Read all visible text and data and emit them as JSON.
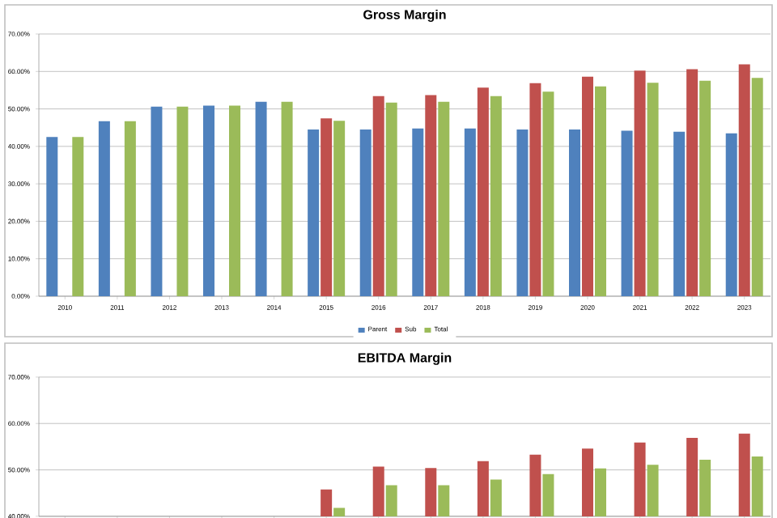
{
  "chart_data": [
    {
      "type": "bar",
      "title": "Gross Margin",
      "categories": [
        "2010",
        "2011",
        "2012",
        "2013",
        "2014",
        "2015",
        "2016",
        "2017",
        "2018",
        "2019",
        "2020",
        "2021",
        "2022",
        "2023"
      ],
      "series": [
        {
          "name": "Parent",
          "color": "#4f81bd",
          "values": [
            42.5,
            46.7,
            50.6,
            50.9,
            51.9,
            44.5,
            44.5,
            44.8,
            44.8,
            44.5,
            44.5,
            44.2,
            43.9,
            43.5
          ]
        },
        {
          "name": "Sub",
          "color": "#c0504d",
          "values": [
            null,
            null,
            null,
            null,
            null,
            47.5,
            53.4,
            53.7,
            55.7,
            56.9,
            58.6,
            60.2,
            60.6,
            61.9
          ]
        },
        {
          "name": "Total",
          "color": "#9bbb59",
          "values": [
            42.5,
            46.7,
            50.6,
            50.9,
            51.9,
            46.8,
            51.7,
            51.9,
            53.4,
            54.6,
            56.0,
            57.0,
            57.5,
            58.3
          ]
        }
      ],
      "ylim": [
        0,
        70
      ],
      "yticks": [
        {
          "value": 0,
          "label": "0.00%"
        },
        {
          "value": 10,
          "label": "10.00%"
        },
        {
          "value": 20,
          "label": "20.00%"
        },
        {
          "value": 30,
          "label": "30.00%"
        },
        {
          "value": 40,
          "label": "40.00%"
        },
        {
          "value": 50,
          "label": "50.00%"
        },
        {
          "value": 60,
          "label": "60.00%"
        },
        {
          "value": 70,
          "label": "70.00%"
        }
      ],
      "grid": "y",
      "legend": "bottom"
    },
    {
      "type": "bar",
      "title": "EBITDA Margin",
      "categories": [
        "2010",
        "2011",
        "2012",
        "2013",
        "2014",
        "2015",
        "2016",
        "2017",
        "2018",
        "2019",
        "2020",
        "2021",
        "2022",
        "2023"
      ],
      "series": [
        {
          "color": "#4f81bd",
          "values": [
            null,
            null,
            null,
            null,
            null,
            null,
            null,
            null,
            null,
            null,
            null,
            null,
            null,
            null
          ]
        },
        {
          "color": "#c0504d",
          "values": [
            null,
            null,
            null,
            null,
            null,
            45.8,
            50.7,
            50.4,
            51.9,
            53.3,
            54.6,
            55.9,
            56.9,
            57.8
          ]
        },
        {
          "color": "#9bbb59",
          "values": [
            null,
            null,
            null,
            null,
            null,
            41.8,
            46.7,
            46.7,
            47.9,
            49.1,
            50.3,
            51.1,
            52.2,
            52.9
          ]
        }
      ],
      "ylim": [
        40,
        70
      ],
      "yticks": [
        {
          "value": 40,
          "label": "40.00%"
        },
        {
          "value": 50,
          "label": "50.00%"
        },
        {
          "value": 60,
          "label": "60.00%"
        },
        {
          "value": 70,
          "label": "70.00%"
        }
      ],
      "grid": "y",
      "tick_labels": "y"
    }
  ]
}
